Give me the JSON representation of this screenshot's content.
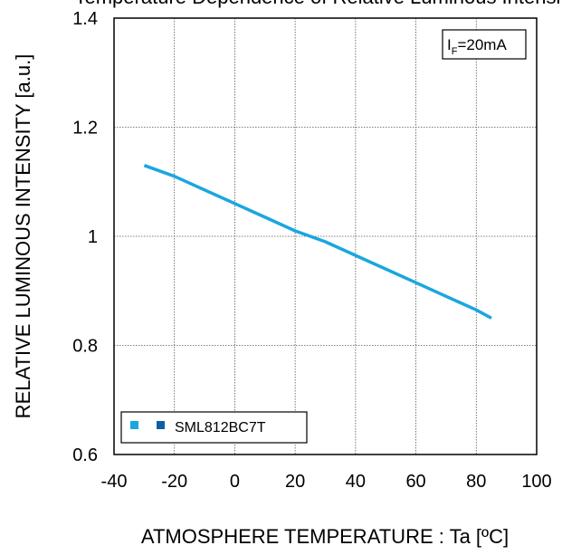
{
  "chart_data": {
    "type": "line",
    "title": "Temperature Dependence of Relative Luminous Intensity",
    "xlabel": "ATMOSPHERE TEMPERATURE : Ta [ºC]",
    "ylabel": "RELATIVE LUMINOUS INTENSITY [a.u.]",
    "xlim": [
      -40,
      100
    ],
    "ylim": [
      0.6,
      1.4
    ],
    "xticks": [
      "-40",
      "-20",
      "0",
      "20",
      "40",
      "60",
      "80",
      "100"
    ],
    "yticks": [
      "0.6",
      "0.8",
      "1",
      "1.2",
      "1.4"
    ],
    "grid": true,
    "condition": {
      "main": "I",
      "sub": "F",
      "rest": "=20mA"
    },
    "legend": {
      "position": "bottom-left",
      "label": "SML812BC7T",
      "colors": [
        "#1aa6e0",
        "#0b5fa8"
      ]
    },
    "series": [
      {
        "name": "SML812BC7T",
        "color": "#1aa6e0",
        "x": [
          -30,
          -20,
          -10,
          0,
          10,
          20,
          30,
          40,
          50,
          60,
          70,
          80,
          85
        ],
        "y": [
          1.13,
          1.11,
          1.085,
          1.06,
          1.035,
          1.01,
          0.99,
          0.965,
          0.94,
          0.915,
          0.89,
          0.865,
          0.85
        ]
      }
    ]
  }
}
